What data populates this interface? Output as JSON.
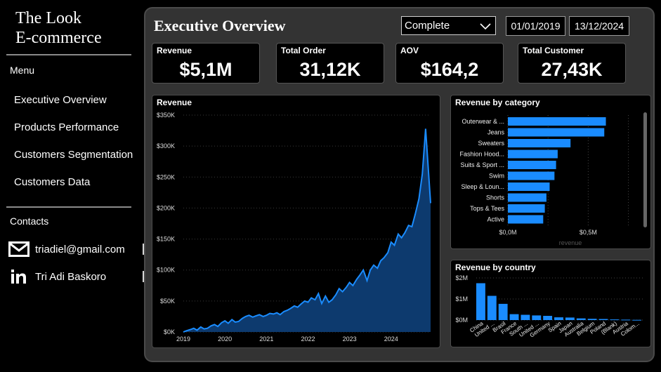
{
  "sidebar": {
    "brand_line1": "The Look",
    "brand_line2": "E-commerce",
    "menu_heading": "Menu",
    "nav": [
      {
        "label": "Executive Overview"
      },
      {
        "label": "Products Performance"
      },
      {
        "label": "Customers Segmentation"
      },
      {
        "label": "Customers Data"
      }
    ],
    "contacts_heading": "Contacts",
    "email": "triadiel@gmail.com",
    "linkedin": "Tri Adi Baskoro",
    "icons": {
      "email": "envelope-icon",
      "linkedin": "linkedin-icon"
    }
  },
  "header": {
    "title": "Executive Overview",
    "status_filter": "Complete",
    "date_start": "01/01/2019",
    "date_end": "13/12/2024"
  },
  "kpis": [
    {
      "label": "Revenue",
      "value": "$5,1M"
    },
    {
      "label": "Total Order",
      "value": "31,12K"
    },
    {
      "label": "AOV",
      "value": "$164,2"
    },
    {
      "label": "Total Customer",
      "value": "27,43K"
    }
  ],
  "colors": {
    "accent": "#1a8cff",
    "area_fill": "#0d3a6e",
    "card_bg": "#000000",
    "panel_bg": "#333333"
  },
  "chart_data": [
    {
      "type": "area",
      "title": "Revenue",
      "x_ticks": [
        "2019",
        "2020",
        "2021",
        "2022",
        "2023",
        "2024"
      ],
      "y_ticks": [
        "$0K",
        "$50K",
        "$100K",
        "$150K",
        "$200K",
        "$250K",
        "$300K",
        "$350K"
      ],
      "ylim": [
        0,
        350000
      ],
      "x_start": 2019.0,
      "x_end": 2024.95,
      "x": [
        2019.0,
        2019.08,
        2019.17,
        2019.25,
        2019.33,
        2019.42,
        2019.5,
        2019.58,
        2019.67,
        2019.75,
        2019.83,
        2019.92,
        2020.0,
        2020.08,
        2020.17,
        2020.25,
        2020.33,
        2020.42,
        2020.5,
        2020.58,
        2020.67,
        2020.75,
        2020.83,
        2020.92,
        2021.0,
        2021.08,
        2021.17,
        2021.25,
        2021.33,
        2021.42,
        2021.5,
        2021.58,
        2021.67,
        2021.75,
        2021.83,
        2021.92,
        2022.0,
        2022.08,
        2022.17,
        2022.25,
        2022.33,
        2022.42,
        2022.5,
        2022.58,
        2022.67,
        2022.75,
        2022.83,
        2022.92,
        2023.0,
        2023.08,
        2023.17,
        2023.25,
        2023.33,
        2023.42,
        2023.5,
        2023.58,
        2023.67,
        2023.75,
        2023.83,
        2023.92,
        2024.0,
        2024.08,
        2024.17,
        2024.25,
        2024.33,
        2024.42,
        2024.5,
        2024.58,
        2024.67,
        2024.75,
        2024.83,
        2024.95
      ],
      "values": [
        0,
        2000,
        4000,
        6000,
        3000,
        8000,
        5000,
        6000,
        10000,
        12000,
        9000,
        15000,
        18000,
        14000,
        20000,
        16000,
        17000,
        22000,
        25000,
        27000,
        24000,
        26000,
        28000,
        25000,
        27000,
        30000,
        29000,
        31000,
        28000,
        33000,
        35000,
        38000,
        42000,
        40000,
        45000,
        50000,
        48000,
        55000,
        52000,
        62000,
        46000,
        58000,
        48000,
        52000,
        60000,
        70000,
        65000,
        72000,
        80000,
        75000,
        85000,
        92000,
        100000,
        83000,
        100000,
        108000,
        103000,
        115000,
        120000,
        128000,
        145000,
        140000,
        158000,
        152000,
        160000,
        172000,
        170000,
        190000,
        215000,
        255000,
        328000,
        208000
      ]
    },
    {
      "type": "bar",
      "orientation": "horizontal",
      "title": "Revenue by category",
      "categories": [
        "Outerwear & ...",
        "Jeans",
        "Sweaters",
        "Fashion Hood...",
        "Suits & Sport ...",
        "Swim",
        "Sleep & Loun...",
        "Shorts",
        "Tops & Tees",
        "Active"
      ],
      "values": [
        0.61,
        0.6,
        0.39,
        0.31,
        0.3,
        0.29,
        0.26,
        0.24,
        0.23,
        0.22
      ],
      "unit": "M",
      "x_ticks": [
        "$0,0M",
        "$0,5M"
      ],
      "xlim": [
        0,
        0.8
      ],
      "xlabel": "revenue"
    },
    {
      "type": "bar",
      "title": "Revenue by country",
      "categories": [
        "China",
        "United ...",
        "Brasil",
        "France",
        "South ...",
        "United ...",
        "Germany",
        "Spain",
        "Japan",
        "Australia",
        "Belgium",
        "Poland",
        "(Blank)",
        "Austria",
        "Colom..."
      ],
      "values": [
        1.75,
        1.15,
        0.77,
        0.28,
        0.25,
        0.22,
        0.2,
        0.13,
        0.12,
        0.08,
        0.06,
        0.05,
        0.03,
        0.02,
        0.01
      ],
      "unit": "M",
      "y_ticks": [
        "$0M",
        "$1M",
        "$2M"
      ],
      "ylim": [
        0,
        2
      ]
    }
  ]
}
